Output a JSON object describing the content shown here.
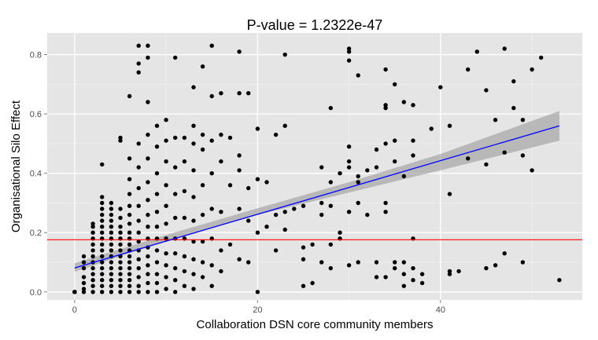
{
  "chart_data": {
    "type": "scatter",
    "title": "P-value = 1.2322e-47",
    "xlabel": "Collaboration DSN core community members",
    "ylabel": "Organisational Silo Effect",
    "xlim": [
      -3,
      55.5
    ],
    "ylim": [
      -0.027,
      0.873
    ],
    "x_ticks": [
      0,
      20,
      40
    ],
    "y_ticks": [
      0.0,
      0.2,
      0.4,
      0.6,
      0.8
    ],
    "x_tick_labels": [
      "0",
      "20",
      "40"
    ],
    "y_tick_labels": [
      "0.0",
      "0.2",
      "0.4",
      "0.6",
      "0.8"
    ],
    "grid": true,
    "background": "#e5e5e5",
    "colors": {
      "points": "#000000",
      "fit_line": "#0000ff",
      "confidence_band": "#999999",
      "reference_line": "#ff0000"
    },
    "reference_line": {
      "y": 0.176
    },
    "fit_line": {
      "x": [
        0,
        53
      ],
      "y": [
        0.081,
        0.56
      ]
    },
    "confidence_band": {
      "x": [
        0,
        10,
        20,
        30,
        40,
        53
      ],
      "lower": [
        0.068,
        0.172,
        0.26,
        0.335,
        0.41,
        0.51
      ],
      "upper": [
        0.097,
        0.192,
        0.282,
        0.37,
        0.465,
        0.61
      ]
    },
    "points": [
      [
        0,
        0
      ],
      [
        0,
        0
      ],
      [
        0,
        0
      ],
      [
        0,
        0
      ],
      [
        0,
        0
      ],
      [
        1,
        0
      ],
      [
        1,
        0.01
      ],
      [
        1,
        0.03
      ],
      [
        1,
        0.05
      ],
      [
        1,
        0.08
      ],
      [
        1,
        0.1
      ],
      [
        1,
        0.12
      ],
      [
        2,
        0
      ],
      [
        2,
        0.02
      ],
      [
        2,
        0.04
      ],
      [
        2,
        0.06
      ],
      [
        2,
        0.08
      ],
      [
        2,
        0.1
      ],
      [
        2,
        0.12
      ],
      [
        2,
        0.14
      ],
      [
        2,
        0.16
      ],
      [
        2,
        0.18
      ],
      [
        2,
        0.2
      ],
      [
        2,
        0.22
      ],
      [
        2,
        0.23
      ],
      [
        3,
        0
      ],
      [
        3,
        0.02
      ],
      [
        3,
        0.04
      ],
      [
        3,
        0.06
      ],
      [
        3,
        0.08
      ],
      [
        3,
        0.1
      ],
      [
        3,
        0.12
      ],
      [
        3,
        0.14
      ],
      [
        3,
        0.16
      ],
      [
        3,
        0.18
      ],
      [
        3,
        0.2
      ],
      [
        3,
        0.22
      ],
      [
        3,
        0.24
      ],
      [
        3,
        0.26
      ],
      [
        3,
        0.28
      ],
      [
        3,
        0.3
      ],
      [
        3,
        0.32
      ],
      [
        3,
        0.43
      ],
      [
        4,
        0
      ],
      [
        4,
        0.02
      ],
      [
        4,
        0.04
      ],
      [
        4,
        0.06
      ],
      [
        4,
        0.08
      ],
      [
        4,
        0.1
      ],
      [
        4,
        0.12
      ],
      [
        4,
        0.14
      ],
      [
        4,
        0.16
      ],
      [
        4,
        0.18
      ],
      [
        4,
        0.2
      ],
      [
        4,
        0.22
      ],
      [
        4,
        0.24
      ],
      [
        4,
        0.26
      ],
      [
        4,
        0.28
      ],
      [
        4,
        0.3
      ],
      [
        5,
        0
      ],
      [
        5,
        0.02
      ],
      [
        5,
        0.04
      ],
      [
        5,
        0.06
      ],
      [
        5,
        0.08
      ],
      [
        5,
        0.1
      ],
      [
        5,
        0.12
      ],
      [
        5,
        0.14
      ],
      [
        5,
        0.16
      ],
      [
        5,
        0.18
      ],
      [
        5,
        0.2
      ],
      [
        5,
        0.22
      ],
      [
        5,
        0.25
      ],
      [
        5,
        0.28
      ],
      [
        5,
        0.51
      ],
      [
        5,
        0.52
      ],
      [
        6,
        0
      ],
      [
        6,
        0.02
      ],
      [
        6,
        0.04
      ],
      [
        6,
        0.06
      ],
      [
        6,
        0.08
      ],
      [
        6,
        0.1
      ],
      [
        6,
        0.12
      ],
      [
        6,
        0.14
      ],
      [
        6,
        0.16
      ],
      [
        6,
        0.18
      ],
      [
        6,
        0.2
      ],
      [
        6,
        0.23
      ],
      [
        6,
        0.26
      ],
      [
        6,
        0.29
      ],
      [
        6,
        0.33
      ],
      [
        6,
        0.38
      ],
      [
        6,
        0.45
      ],
      [
        6,
        0.66
      ],
      [
        7,
        0
      ],
      [
        7,
        0.02
      ],
      [
        7,
        0.05
      ],
      [
        7,
        0.08
      ],
      [
        7,
        0.11
      ],
      [
        7,
        0.14
      ],
      [
        7,
        0.17
      ],
      [
        7,
        0.2
      ],
      [
        7,
        0.24
      ],
      [
        7,
        0.29
      ],
      [
        7,
        0.35
      ],
      [
        7,
        0.42
      ],
      [
        7,
        0.5
      ],
      [
        7,
        0.74
      ],
      [
        7,
        0.77
      ],
      [
        7,
        0.83
      ],
      [
        8,
        0
      ],
      [
        8,
        0.03
      ],
      [
        8,
        0.06
      ],
      [
        8,
        0.09
      ],
      [
        8,
        0.12
      ],
      [
        8,
        0.15
      ],
      [
        8,
        0.18
      ],
      [
        8,
        0.22
      ],
      [
        8,
        0.26
      ],
      [
        8,
        0.31
      ],
      [
        8,
        0.37
      ],
      [
        8,
        0.45
      ],
      [
        8,
        0.53
      ],
      [
        8,
        0.64
      ],
      [
        8,
        0.79
      ],
      [
        8,
        0.83
      ],
      [
        9,
        0
      ],
      [
        9,
        0.03
      ],
      [
        9,
        0.06
      ],
      [
        9,
        0.1
      ],
      [
        9,
        0.14
      ],
      [
        9,
        0.18
      ],
      [
        9,
        0.22
      ],
      [
        9,
        0.27
      ],
      [
        9,
        0.33
      ],
      [
        9,
        0.4
      ],
      [
        9,
        0.49
      ],
      [
        9,
        0.56
      ],
      [
        10,
        0.01
      ],
      [
        10,
        0.05
      ],
      [
        10,
        0.09
      ],
      [
        10,
        0.13
      ],
      [
        10,
        0.18
      ],
      [
        10,
        0.23
      ],
      [
        10,
        0.29
      ],
      [
        10,
        0.36
      ],
      [
        10,
        0.44
      ],
      [
        10,
        0.51
      ],
      [
        10,
        0.58
      ],
      [
        11,
        0
      ],
      [
        11,
        0.04
      ],
      [
        11,
        0.08
      ],
      [
        11,
        0.13
      ],
      [
        11,
        0.18
      ],
      [
        11,
        0.25
      ],
      [
        11,
        0.33
      ],
      [
        11,
        0.42
      ],
      [
        11,
        0.52
      ],
      [
        11,
        0.79
      ],
      [
        12,
        0.02
      ],
      [
        12,
        0.07
      ],
      [
        12,
        0.12
      ],
      [
        12,
        0.18
      ],
      [
        12,
        0.25
      ],
      [
        12,
        0.34
      ],
      [
        12,
        0.44
      ],
      [
        12,
        0.52
      ],
      [
        13,
        0.01
      ],
      [
        13,
        0.06
      ],
      [
        13,
        0.11
      ],
      [
        13,
        0.17
      ],
      [
        13,
        0.24
      ],
      [
        13,
        0.32
      ],
      [
        13,
        0.41
      ],
      [
        13,
        0.5
      ],
      [
        13,
        0.56
      ],
      [
        13,
        0.69
      ],
      [
        14,
        0.05
      ],
      [
        14,
        0.1
      ],
      [
        14,
        0.17
      ],
      [
        14,
        0.26
      ],
      [
        14,
        0.36
      ],
      [
        14,
        0.48
      ],
      [
        14,
        0.53
      ],
      [
        14,
        0.76
      ],
      [
        15,
        0.02
      ],
      [
        15,
        0.09
      ],
      [
        15,
        0.18
      ],
      [
        15,
        0.28
      ],
      [
        15,
        0.4
      ],
      [
        15,
        0.51
      ],
      [
        15,
        0.66
      ],
      [
        15,
        0.83
      ],
      [
        16,
        0.07
      ],
      [
        16,
        0.14
      ],
      [
        16,
        0.27
      ],
      [
        16,
        0.44
      ],
      [
        16,
        0.53
      ],
      [
        16,
        0.67
      ],
      [
        17,
        0.16
      ],
      [
        17,
        0.36
      ],
      [
        17,
        0.52
      ],
      [
        18,
        0.11
      ],
      [
        18,
        0.28
      ],
      [
        18,
        0.41
      ],
      [
        18,
        0.46
      ],
      [
        18,
        0.67
      ],
      [
        18,
        0.81
      ],
      [
        19,
        0.1
      ],
      [
        19,
        0.24
      ],
      [
        19,
        0.35
      ],
      [
        19,
        0.67
      ],
      [
        20,
        0
      ],
      [
        20,
        0.2
      ],
      [
        20,
        0.38
      ],
      [
        20,
        0.55
      ],
      [
        21,
        0.22
      ],
      [
        21,
        0.37
      ],
      [
        22,
        0.14
      ],
      [
        22,
        0.26
      ],
      [
        22,
        0.53
      ],
      [
        23,
        0.21
      ],
      [
        23,
        0.27
      ],
      [
        23,
        0.56
      ],
      [
        23,
        0.8
      ],
      [
        24,
        0.28
      ],
      [
        25,
        0.02
      ],
      [
        25,
        0.11
      ],
      [
        25,
        0.15
      ],
      [
        25,
        0.29
      ],
      [
        26,
        0.03
      ],
      [
        26,
        0.16
      ],
      [
        27,
        0.1
      ],
      [
        27,
        0.26
      ],
      [
        27,
        0.3
      ],
      [
        27,
        0.42
      ],
      [
        28,
        0.08
      ],
      [
        28,
        0.16
      ],
      [
        28,
        0.29
      ],
      [
        28,
        0.37
      ],
      [
        28,
        0.62
      ],
      [
        29,
        0.18
      ],
      [
        29,
        0.2
      ],
      [
        29,
        0.4
      ],
      [
        30,
        0.09
      ],
      [
        30,
        0.27
      ],
      [
        30,
        0.42
      ],
      [
        30,
        0.44
      ],
      [
        30,
        0.49
      ],
      [
        30,
        0.78
      ],
      [
        30,
        0.81
      ],
      [
        30,
        0.82
      ],
      [
        31,
        0.1
      ],
      [
        31,
        0.3
      ],
      [
        31,
        0.37
      ],
      [
        31,
        0.39
      ],
      [
        31,
        0.73
      ],
      [
        32,
        0.26
      ],
      [
        32,
        0.41
      ],
      [
        33,
        0.05
      ],
      [
        33,
        0.1
      ],
      [
        33,
        0.42
      ],
      [
        33,
        0.48
      ],
      [
        34,
        0.05
      ],
      [
        34,
        0.27
      ],
      [
        34,
        0.3
      ],
      [
        34,
        0.5
      ],
      [
        34,
        0.62
      ],
      [
        34,
        0.63
      ],
      [
        34,
        0.75
      ],
      [
        35,
        0.08
      ],
      [
        35,
        0.1
      ],
      [
        35,
        0.44
      ],
      [
        35,
        0.51
      ],
      [
        35,
        0.7
      ],
      [
        36,
        0.02
      ],
      [
        36,
        0.06
      ],
      [
        36,
        0.1
      ],
      [
        36,
        0.39
      ],
      [
        36,
        0.64
      ],
      [
        37,
        0.04
      ],
      [
        37,
        0.08
      ],
      [
        37,
        0.18
      ],
      [
        37,
        0.46
      ],
      [
        37,
        0.51
      ],
      [
        37,
        0.63
      ],
      [
        38,
        0.03
      ],
      [
        38,
        0.06
      ],
      [
        39,
        0.55
      ],
      [
        40,
        0.69
      ],
      [
        41,
        0.06
      ],
      [
        41,
        0.07
      ],
      [
        41,
        0.33
      ],
      [
        41,
        0.56
      ],
      [
        42,
        0.07
      ],
      [
        43,
        0.45
      ],
      [
        43,
        0.75
      ],
      [
        44,
        0.81
      ],
      [
        45,
        0.08
      ],
      [
        45,
        0.43
      ],
      [
        45,
        0.68
      ],
      [
        46,
        0.09
      ],
      [
        46,
        0.58
      ],
      [
        47,
        0.13
      ],
      [
        47,
        0.47
      ],
      [
        47,
        0.82
      ],
      [
        48,
        0.62
      ],
      [
        48,
        0.71
      ],
      [
        49,
        0.1
      ],
      [
        49,
        0.46
      ],
      [
        49,
        0.58
      ],
      [
        50,
        0.41
      ],
      [
        50,
        0.75
      ],
      [
        51,
        0.79
      ],
      [
        53,
        0.04
      ]
    ]
  }
}
